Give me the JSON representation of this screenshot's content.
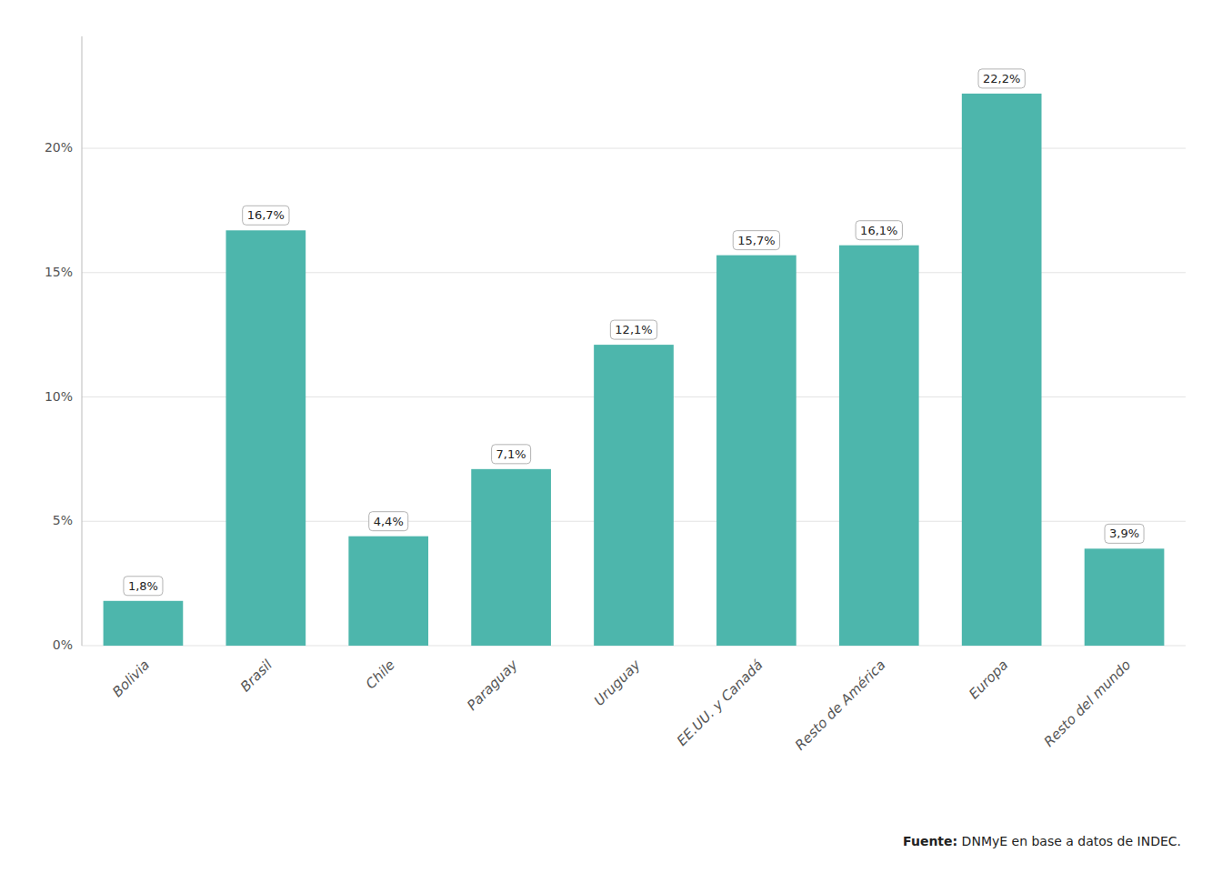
{
  "chart_data": {
    "type": "bar",
    "categories": [
      "Bolivia",
      "Brasil",
      "Chile",
      "Paraguay",
      "Uruguay",
      "EE.UU. y Canadá",
      "Resto de América",
      "Europa",
      "Resto del mundo"
    ],
    "values": [
      1.8,
      16.7,
      4.4,
      7.1,
      12.1,
      15.7,
      16.1,
      22.2,
      3.9
    ],
    "value_labels": [
      "1,8%",
      "16,7%",
      "4,4%",
      "7,1%",
      "12,1%",
      "15,7%",
      "16,1%",
      "22,2%",
      "3,9%"
    ],
    "data_labels": true,
    "color": "#4DB6AC",
    "ylim": [
      0,
      24.5
    ],
    "yticks": [
      {
        "value": 0,
        "label": "0%"
      },
      {
        "value": 5,
        "label": "5%"
      },
      {
        "value": 10,
        "label": "10%"
      },
      {
        "value": 15,
        "label": "15%"
      },
      {
        "value": 20,
        "label": "20%"
      }
    ],
    "grid": true,
    "annotations": [
      "Fuente:",
      " DNMyE en base a datos de INDEC."
    ]
  }
}
